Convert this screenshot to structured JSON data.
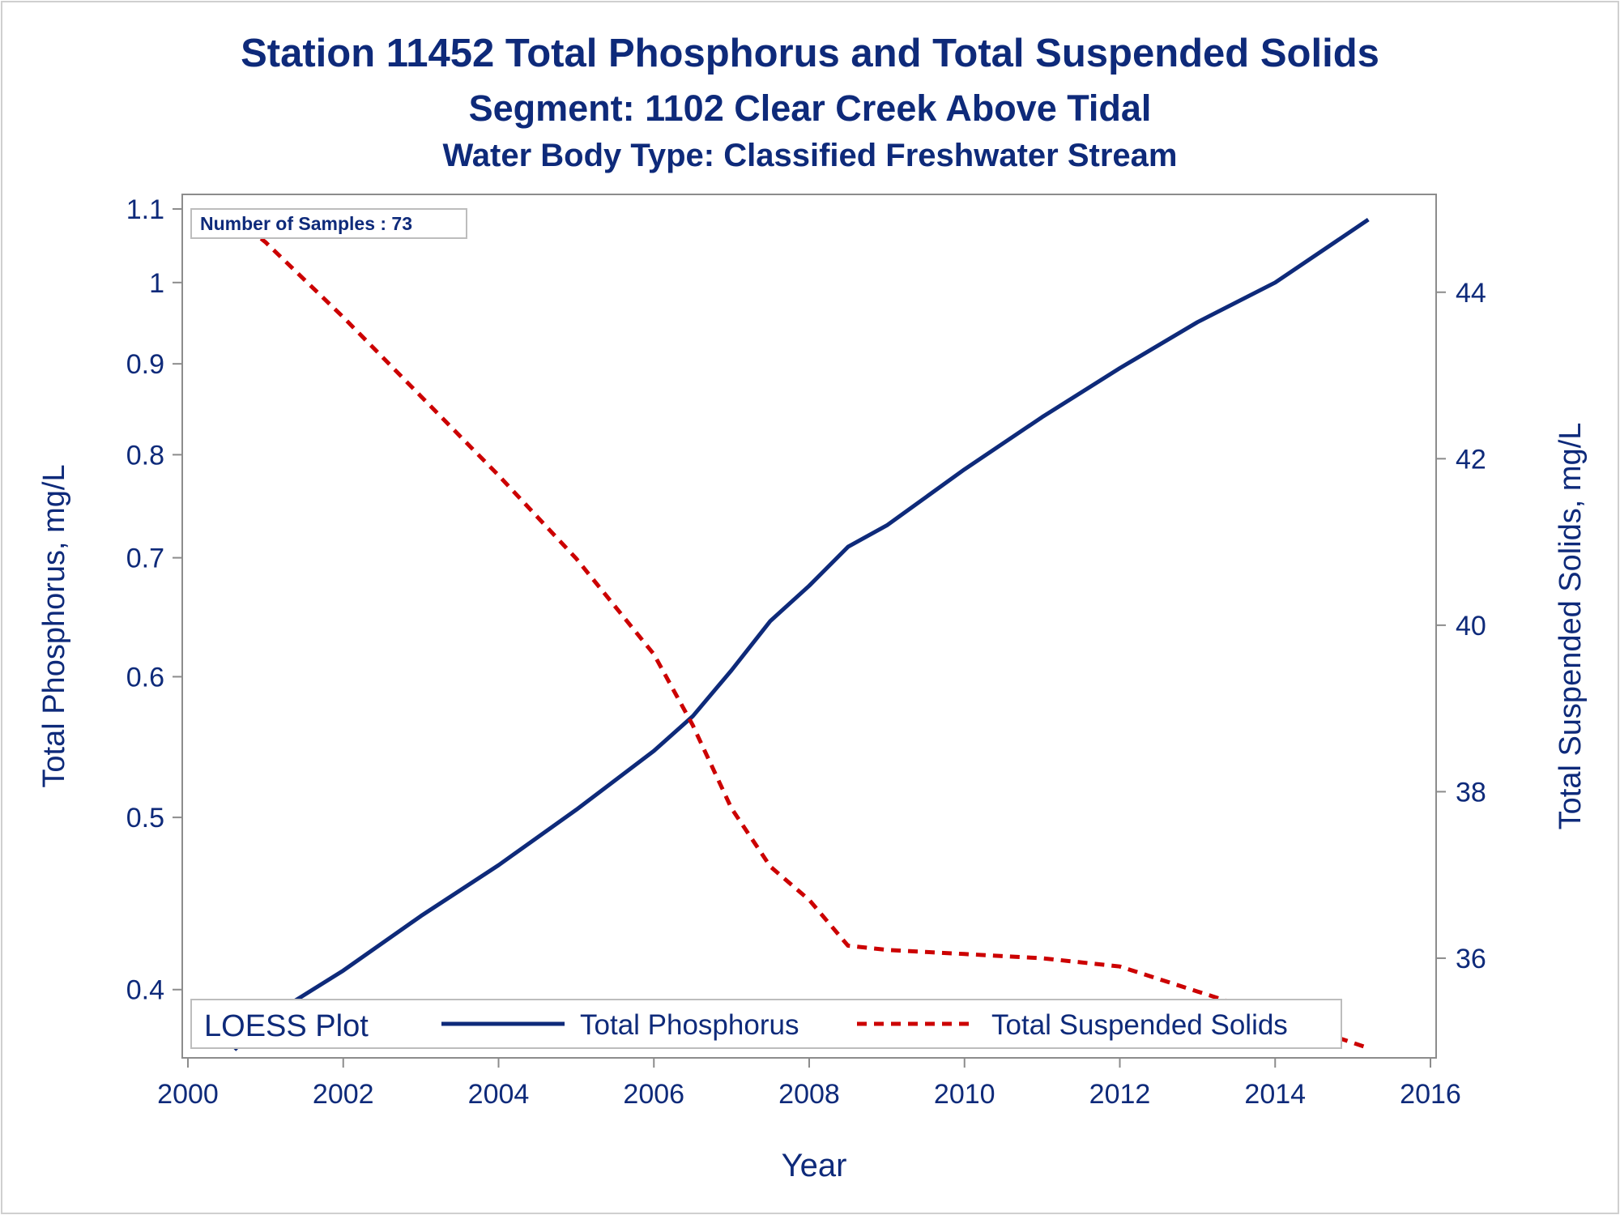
{
  "titles": {
    "line1": "Station 11452  Total Phosphorus and Total Suspended Solids",
    "line2": "Segment: 1102  Clear Creek Above Tidal",
    "line3": "Water Body Type: Classified Freshwater Stream"
  },
  "annotation": "Number of Samples : 73",
  "legend": {
    "title": "LOESS Plot",
    "items": [
      "Total Phosphorus",
      "Total Suspended Solids"
    ]
  },
  "colors": {
    "phosphorus": "#0e2a7a",
    "tss": "#cc0000",
    "text": "#0e2a7a",
    "axis": "#8c8c8c"
  },
  "chart_data": {
    "type": "line",
    "xlabel": "Year",
    "ylabel": "Total Phosphorus, mg/L",
    "y2label": "Total Suspended Solids, mg/L",
    "xlim": [
      2000,
      2016
    ],
    "x_ticks": [
      2000,
      2002,
      2004,
      2006,
      2008,
      2010,
      2012,
      2014,
      2016
    ],
    "ylim": [
      0.37,
      1.1
    ],
    "y_scale": "log",
    "y_ticks": [
      0.4,
      0.5,
      0.6,
      0.7,
      0.8,
      0.9,
      1,
      1.1
    ],
    "y2lim": [
      34.9,
      45.0
    ],
    "y2_ticks": [
      36,
      38,
      40,
      42,
      44
    ],
    "legend_position": "bottom-inside",
    "series": [
      {
        "name": "Total Phosphorus",
        "axis": "left",
        "style": "solid",
        "x": [
          2000.6,
          2001.0,
          2002.0,
          2003.0,
          2004.0,
          2005.0,
          2006.0,
          2006.5,
          2007.0,
          2007.5,
          2008.0,
          2008.5,
          2009.0,
          2010.0,
          2011.0,
          2012.0,
          2013.0,
          2014.0,
          2015.2
        ],
        "y": [
          0.37,
          0.385,
          0.41,
          0.44,
          0.47,
          0.505,
          0.545,
          0.57,
          0.605,
          0.645,
          0.675,
          0.71,
          0.73,
          0.785,
          0.84,
          0.895,
          0.95,
          1.0,
          1.085
        ]
      },
      {
        "name": "Total Suspended Solids",
        "axis": "right",
        "style": "dashed",
        "x": [
          2000.6,
          2001.0,
          2002.0,
          2003.0,
          2004.0,
          2005.0,
          2006.0,
          2006.5,
          2007.0,
          2007.5,
          2008.0,
          2008.5,
          2009.0,
          2010.0,
          2011.0,
          2012.0,
          2013.0,
          2014.0,
          2015.2
        ],
        "y": [
          44.9,
          44.6,
          43.7,
          42.75,
          41.8,
          40.8,
          39.65,
          38.8,
          37.8,
          37.1,
          36.7,
          36.15,
          36.1,
          36.05,
          36.0,
          35.9,
          35.6,
          35.3,
          34.92
        ]
      }
    ]
  }
}
